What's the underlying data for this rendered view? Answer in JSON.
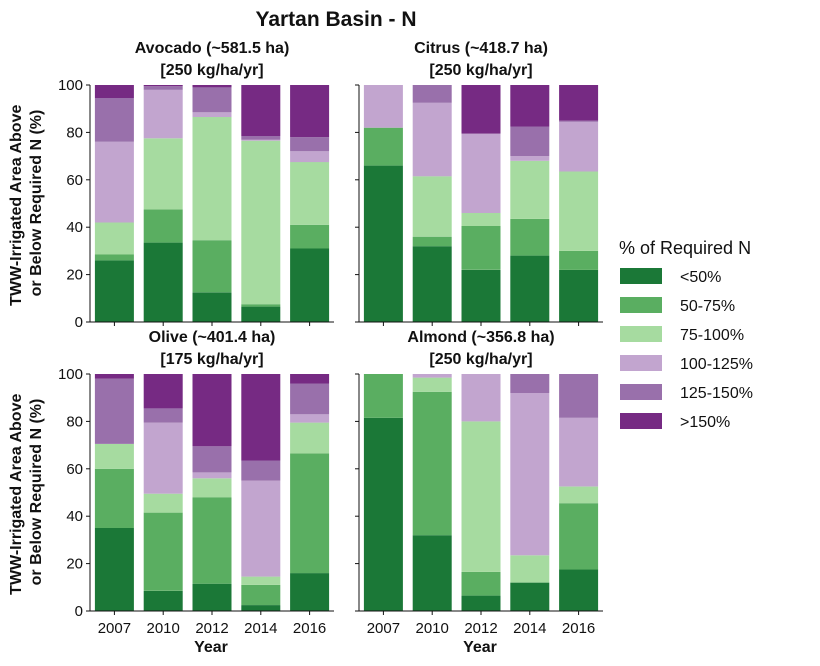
{
  "chart_data": {
    "type": "bar",
    "stacked": true,
    "title": "Yartan Basin - N",
    "xlabel": "Year",
    "ylabel_lines": [
      "TWW-Irrigated Area Above",
      "or Below Required N (%)"
    ],
    "ylim": [
      0,
      100
    ],
    "yticks": [
      0,
      20,
      40,
      60,
      80,
      100
    ],
    "grid": false,
    "legend": {
      "title": "% of Required N",
      "placement": "right",
      "entries": [
        "<50%",
        "50-75%",
        "75-100%",
        "100-125%",
        "125-150%",
        ">150%"
      ]
    },
    "colors": [
      "#1b7837",
      "#5aae61",
      "#a6dba0",
      "#c2a5cf",
      "#9970ab",
      "#762a83"
    ],
    "categories": [
      "2007",
      "2010",
      "2012",
      "2014",
      "2016"
    ],
    "panels": [
      {
        "title_line1": "Avocado (~581.5 ha)",
        "title_line2": "[250 kg/ha/yr]",
        "series": [
          {
            "name": "<50%",
            "values": [
              26,
              33.5,
              12.5,
              6.5,
              31
            ]
          },
          {
            "name": "50-75%",
            "values": [
              2.5,
              14,
              22,
              1,
              10
            ]
          },
          {
            "name": "75-100%",
            "values": [
              13.5,
              30,
              52,
              69,
              26.5
            ]
          },
          {
            "name": "100-125%",
            "values": [
              34,
              20.5,
              2,
              0.5,
              4.5
            ]
          },
          {
            "name": "125-150%",
            "values": [
              18.5,
              1.5,
              10.5,
              1.5,
              6
            ]
          },
          {
            "name": ">150%",
            "values": [
              5.5,
              0.5,
              1,
              21.5,
              22
            ]
          }
        ]
      },
      {
        "title_line1": "Citrus (~418.7 ha)",
        "title_line2": "[250 kg/ha/yr]",
        "series": [
          {
            "name": "<50%",
            "values": [
              66,
              32,
              22,
              28,
              22
            ]
          },
          {
            "name": "50-75%",
            "values": [
              16,
              4,
              18.5,
              15.5,
              8
            ]
          },
          {
            "name": "75-100%",
            "values": [
              0,
              25.5,
              5.5,
              24.5,
              33.5
            ]
          },
          {
            "name": "100-125%",
            "values": [
              18,
              31,
              33.5,
              2,
              21
            ]
          },
          {
            "name": "125-150%",
            "values": [
              0,
              7.5,
              0,
              12.5,
              0.5
            ]
          },
          {
            "name": ">150%",
            "values": [
              0,
              0,
              20.5,
              17.5,
              15
            ]
          }
        ]
      },
      {
        "title_line1": "Olive (~401.4 ha)",
        "title_line2": "[175 kg/ha/yr]",
        "series": [
          {
            "name": "<50%",
            "values": [
              35,
              8.5,
              11.5,
              2.5,
              16
            ]
          },
          {
            "name": "50-75%",
            "values": [
              25,
              33,
              36.5,
              8.5,
              50.5
            ]
          },
          {
            "name": "75-100%",
            "values": [
              10.5,
              8,
              8,
              3.5,
              13
            ]
          },
          {
            "name": "100-125%",
            "values": [
              0,
              30,
              2.5,
              40.5,
              3.5
            ]
          },
          {
            "name": "125-150%",
            "values": [
              27.5,
              6,
              11,
              8.5,
              13
            ]
          },
          {
            "name": ">150%",
            "values": [
              2,
              14.5,
              30.5,
              36.5,
              4
            ]
          }
        ]
      },
      {
        "title_line1": "Almond (~356.8 ha)",
        "title_line2": "[250 kg/ha/yr]",
        "series": [
          {
            "name": "<50%",
            "values": [
              81.5,
              32,
              6.5,
              12,
              17.5
            ]
          },
          {
            "name": "50-75%",
            "values": [
              18.5,
              60.5,
              10,
              0,
              28
            ]
          },
          {
            "name": "75-100%",
            "values": [
              0,
              6,
              63.5,
              11.5,
              7
            ]
          },
          {
            "name": "100-125%",
            "values": [
              0,
              1.5,
              20,
              68.5,
              29
            ]
          },
          {
            "name": "125-150%",
            "values": [
              0,
              0,
              0,
              8,
              18.5
            ]
          },
          {
            "name": ">150%",
            "values": [
              0,
              0,
              0,
              0,
              0
            ]
          }
        ]
      }
    ]
  }
}
